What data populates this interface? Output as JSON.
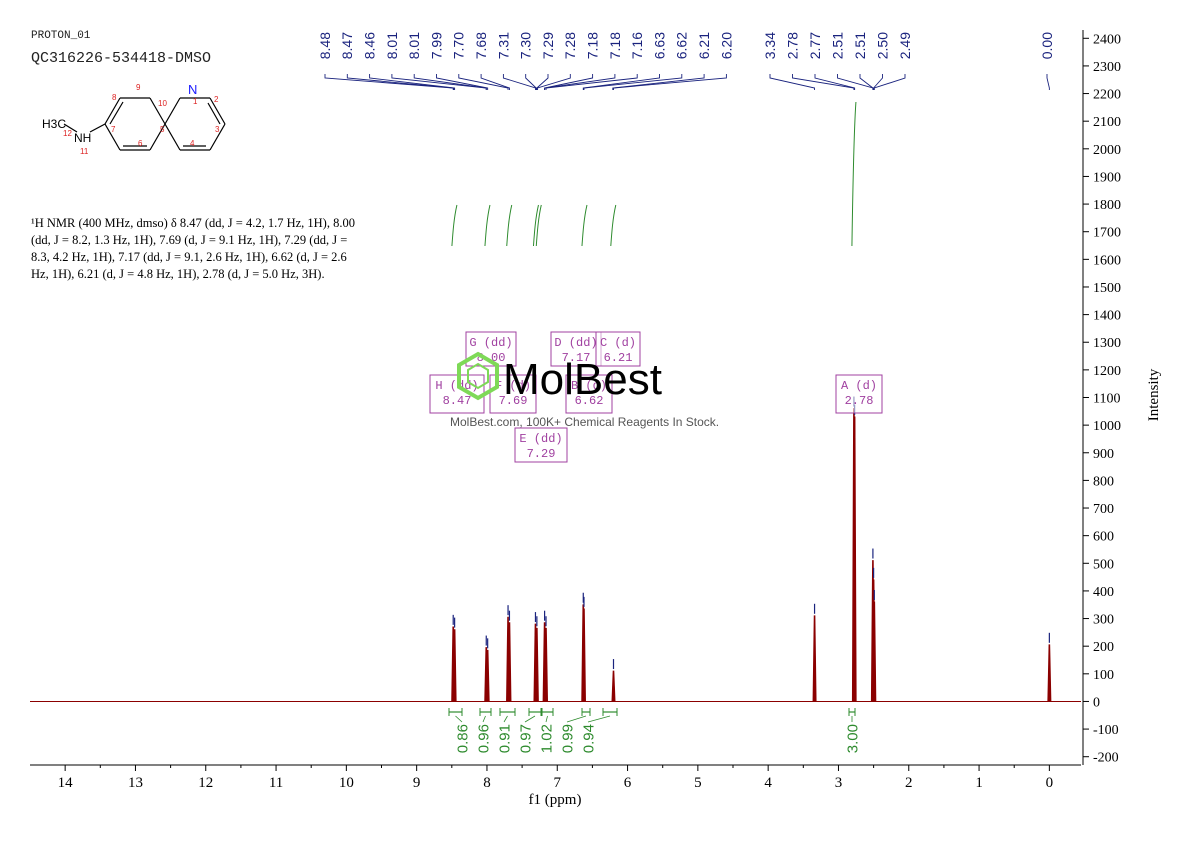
{
  "header": {
    "sample_id": "PROTON_01",
    "sample_name": "QC316226-534418-DMSO"
  },
  "structure": {
    "substituent": "H3C",
    "nh_label": "NH",
    "atoms": [
      {
        "label": "N",
        "color": "#1a1aff"
      },
      {
        "label": "H3C",
        "color": "#000000"
      },
      {
        "label": "NH",
        "color": "#000000"
      }
    ],
    "atom_numbers": [
      "1",
      "2",
      "3",
      "4",
      "5",
      "6",
      "7",
      "8",
      "9",
      "10",
      "11",
      "12"
    ]
  },
  "description": {
    "text": "¹H NMR (400 MHz, dmso) δ 8.47 (dd, J = 4.2, 1.7 Hz, 1H), 8.00 (dd, J = 8.2, 1.3 Hz, 1H), 7.69 (d, J = 9.1 Hz, 1H), 7.29 (dd, J = 8.3, 4.2 Hz, 1H), 7.17 (dd, J = 9.1, 2.6 Hz, 1H), 6.62 (d, J = 2.6 Hz, 1H), 6.21 (d, J = 4.8 Hz, 1H), 2.78 (d, J = 5.0 Hz, 3H)."
  },
  "watermark": {
    "brand": "MolBest",
    "tagline": "MolBest.com, 100K+ Chemical Reagents In Stock."
  },
  "colors": {
    "spectrum": "#8b0000",
    "peak_labels": "#1a237e",
    "integration": "#2e8b2e",
    "multiplet_box": "#a040a0",
    "watermark_green": "#7ed957",
    "axis": "#000000"
  },
  "chart_data": {
    "type": "line",
    "xlabel": "f1 (ppm)",
    "ylabel": "Intensity",
    "xlim": [
      14.5,
      -0.45
    ],
    "ylim": [
      -230,
      2430
    ],
    "x_ticks": [
      14,
      13,
      12,
      11,
      10,
      9,
      8,
      7,
      6,
      5,
      4,
      3,
      2,
      1,
      0
    ],
    "y_ticks": [
      -200,
      -100,
      0,
      100,
      200,
      300,
      400,
      500,
      600,
      700,
      800,
      900,
      1000,
      1100,
      1200,
      1300,
      1400,
      1500,
      1600,
      1700,
      1800,
      1900,
      2000,
      2100,
      2200,
      2300,
      2400
    ],
    "peaks": [
      {
        "ppm": 8.48,
        "height": 270
      },
      {
        "ppm": 8.46,
        "height": 260
      },
      {
        "ppm": 8.01,
        "height": 195
      },
      {
        "ppm": 7.99,
        "height": 185
      },
      {
        "ppm": 7.7,
        "height": 305
      },
      {
        "ppm": 7.68,
        "height": 285
      },
      {
        "ppm": 7.31,
        "height": 280
      },
      {
        "ppm": 7.29,
        "height": 265
      },
      {
        "ppm": 7.18,
        "height": 285
      },
      {
        "ppm": 7.16,
        "height": 265
      },
      {
        "ppm": 6.63,
        "height": 350
      },
      {
        "ppm": 6.62,
        "height": 335
      },
      {
        "ppm": 6.2,
        "height": 110
      },
      {
        "ppm": 3.34,
        "height": 310
      },
      {
        "ppm": 2.78,
        "height": 1060
      },
      {
        "ppm": 2.77,
        "height": 1030
      },
      {
        "ppm": 2.51,
        "height": 510
      },
      {
        "ppm": 2.5,
        "height": 440
      },
      {
        "ppm": 2.49,
        "height": 360
      },
      {
        "ppm": 0.0,
        "height": 205
      }
    ],
    "peak_labels": {
      "group1": [
        "8.48",
        "8.47",
        "8.46",
        "8.01",
        "8.01",
        "7.99",
        "7.70",
        "7.68",
        "7.31",
        "7.30",
        "7.29",
        "7.28",
        "7.18",
        "7.18",
        "7.16",
        "6.63",
        "6.62",
        "6.21",
        "6.20"
      ],
      "group2": [
        "3.34",
        "2.78",
        "2.77",
        "2.51",
        "2.51",
        "2.50",
        "2.49"
      ],
      "group3": [
        "0.00"
      ]
    },
    "integrals": [
      {
        "ppm": 8.47,
        "value": "0.86"
      },
      {
        "ppm": 8.0,
        "value": "0.96"
      },
      {
        "ppm": 7.69,
        "value": "0.91"
      },
      {
        "ppm": 7.29,
        "value": "0.97"
      },
      {
        "ppm": 7.17,
        "value": "1.02"
      },
      {
        "ppm": 6.62,
        "value": "0.99"
      },
      {
        "ppm": 6.21,
        "value": "0.94"
      },
      {
        "ppm": 2.78,
        "value": "3.00"
      }
    ],
    "multiplets": [
      {
        "name": "H (dd)",
        "shift": "8.47"
      },
      {
        "name": "G (dd)",
        "shift": "8.00"
      },
      {
        "name": "F (d)",
        "shift": "7.69"
      },
      {
        "name": "E (dd)",
        "shift": "7.29"
      },
      {
        "name": "D (dd)",
        "shift": "7.17"
      },
      {
        "name": "B (d)",
        "shift": "6.62"
      },
      {
        "name": "C (d)",
        "shift": "6.21"
      },
      {
        "name": "A (d)",
        "shift": "2.78"
      }
    ]
  }
}
